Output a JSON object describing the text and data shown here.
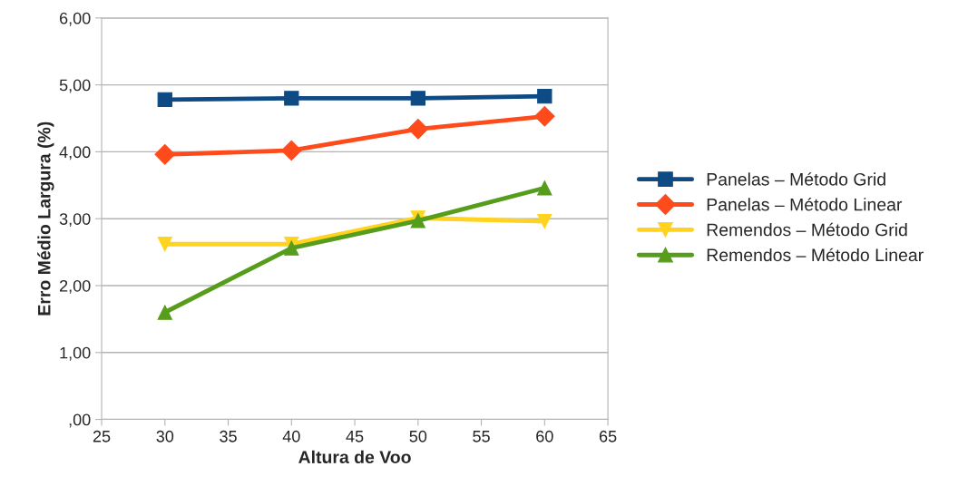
{
  "chart_data": {
    "type": "line",
    "xlabel": "Altura de Voo",
    "ylabel": "Erro Médio Largura (%)",
    "x": [
      30,
      40,
      50,
      60
    ],
    "xlim": [
      25,
      65
    ],
    "xticks": [
      25,
      30,
      35,
      40,
      45,
      50,
      55,
      60,
      65
    ],
    "ylim": [
      0,
      6
    ],
    "yticks": [
      {
        "value": 0,
        "label": ",00"
      },
      {
        "value": 1,
        "label": "1,00"
      },
      {
        "value": 2,
        "label": "2,00"
      },
      {
        "value": 3,
        "label": "3,00"
      },
      {
        "value": 4,
        "label": "4,00"
      },
      {
        "value": 5,
        "label": "5,00"
      },
      {
        "value": 6,
        "label": "6,00"
      }
    ],
    "grid": "y",
    "legend": "right",
    "line_style": "solid",
    "series": [
      {
        "name": "Panelas – Método Grid",
        "color": "#0e4a84",
        "marker": "square",
        "values": [
          4.78,
          4.8,
          4.8,
          4.83
        ]
      },
      {
        "name": "Panelas – Método Linear",
        "color": "#ff4b1c",
        "marker": "diamond",
        "values": [
          3.96,
          4.02,
          4.34,
          4.53
        ]
      },
      {
        "name": "Remendos – Método Grid",
        "color": "#ffd320",
        "marker": "triangle_down",
        "values": [
          2.62,
          2.62,
          3.01,
          2.96
        ]
      },
      {
        "name": "Remendos – Método Linear",
        "color": "#579d1c",
        "marker": "triangle",
        "values": [
          1.6,
          2.56,
          2.97,
          3.46
        ]
      }
    ]
  }
}
